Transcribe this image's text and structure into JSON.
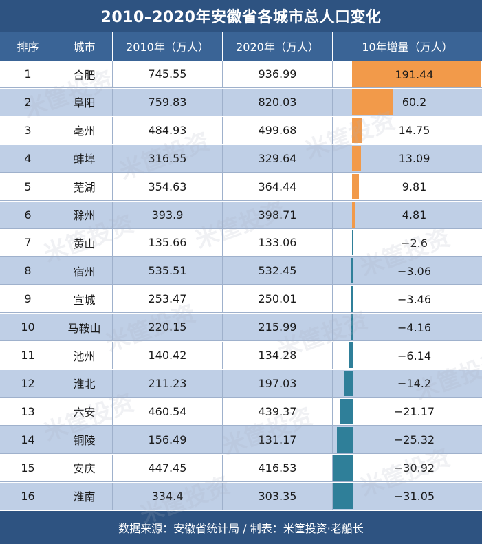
{
  "title": "2010–2020年安徽省各城市总人口变化",
  "headers": {
    "rank": "排序",
    "city": "城市",
    "y2010": "2010年（万人）",
    "y2020": "2020年（万人）",
    "increase": "10年增量（万人）"
  },
  "rows": [
    {
      "rank": "1",
      "city": "合肥",
      "y2010": "745.55",
      "y2020": "936.99",
      "inc": "191.44"
    },
    {
      "rank": "2",
      "city": "阜阳",
      "y2010": "759.83",
      "y2020": "820.03",
      "inc": "60.2"
    },
    {
      "rank": "3",
      "city": "亳州",
      "y2010": "484.93",
      "y2020": "499.68",
      "inc": "14.75"
    },
    {
      "rank": "4",
      "city": "蚌埠",
      "y2010": "316.55",
      "y2020": "329.64",
      "inc": "13.09"
    },
    {
      "rank": "5",
      "city": "芜湖",
      "y2010": "354.63",
      "y2020": "364.44",
      "inc": "9.81"
    },
    {
      "rank": "6",
      "city": "滁州",
      "y2010": "393.9",
      "y2020": "398.71",
      "inc": "4.81"
    },
    {
      "rank": "7",
      "city": "黄山",
      "y2010": "135.66",
      "y2020": "133.06",
      "inc": "−2.6"
    },
    {
      "rank": "8",
      "city": "宿州",
      "y2010": "535.51",
      "y2020": "532.45",
      "inc": "−3.06"
    },
    {
      "rank": "9",
      "city": "宣城",
      "y2010": "253.47",
      "y2020": "250.01",
      "inc": "−3.46"
    },
    {
      "rank": "10",
      "city": "马鞍山",
      "y2010": "220.15",
      "y2020": "215.99",
      "inc": "−4.16"
    },
    {
      "rank": "11",
      "city": "池州",
      "y2010": "140.42",
      "y2020": "134.28",
      "inc": "−6.14"
    },
    {
      "rank": "12",
      "city": "淮北",
      "y2010": "211.23",
      "y2020": "197.03",
      "inc": "−14.2"
    },
    {
      "rank": "13",
      "city": "六安",
      "y2010": "460.54",
      "y2020": "439.37",
      "inc": "−21.17"
    },
    {
      "rank": "14",
      "city": "铜陵",
      "y2010": "156.49",
      "y2020": "131.17",
      "inc": "−25.32"
    },
    {
      "rank": "15",
      "city": "安庆",
      "y2010": "447.45",
      "y2020": "416.53",
      "inc": "−30.92"
    },
    {
      "rank": "16",
      "city": "淮南",
      "y2010": "334.4",
      "y2020": "303.35",
      "inc": "−31.05"
    }
  ],
  "footer": "数据来源：安徽省统计局 / 制表：米筐投资·老船长",
  "watermark": "米筐投资",
  "colors": {
    "title_bg": "#2e5381",
    "header_bg": "#3a6496",
    "row_alt_bg": "#bfcfe6",
    "positive_bar": "#f29a4a",
    "negative_bar": "#2f7f99"
  },
  "chart_data": {
    "type": "table",
    "title": "2010–2020年安徽省各城市总人口变化",
    "columns": [
      "排序",
      "城市",
      "2010年（万人）",
      "2020年（万人）",
      "10年增量（万人）"
    ],
    "categories": [
      "合肥",
      "阜阳",
      "亳州",
      "蚌埠",
      "芜湖",
      "滁州",
      "黄山",
      "宿州",
      "宣城",
      "马鞍山",
      "池州",
      "淮北",
      "六安",
      "铜陵",
      "安庆",
      "淮南"
    ],
    "series": [
      {
        "name": "2010年（万人）",
        "values": [
          745.55,
          759.83,
          484.93,
          316.55,
          354.63,
          393.9,
          135.66,
          535.51,
          253.47,
          220.15,
          140.42,
          211.23,
          460.54,
          156.49,
          447.45,
          334.4
        ]
      },
      {
        "name": "2020年（万人）",
        "values": [
          936.99,
          820.03,
          499.68,
          329.64,
          364.44,
          398.71,
          133.06,
          532.45,
          250.01,
          215.99,
          134.28,
          197.03,
          439.37,
          131.17,
          416.53,
          303.35
        ]
      },
      {
        "name": "10年增量（万人）",
        "values": [
          191.44,
          60.2,
          14.75,
          13.09,
          9.81,
          4.81,
          -2.6,
          -3.06,
          -3.46,
          -4.16,
          -6.14,
          -14.2,
          -21.17,
          -25.32,
          -30.92,
          -31.05
        ]
      }
    ]
  }
}
